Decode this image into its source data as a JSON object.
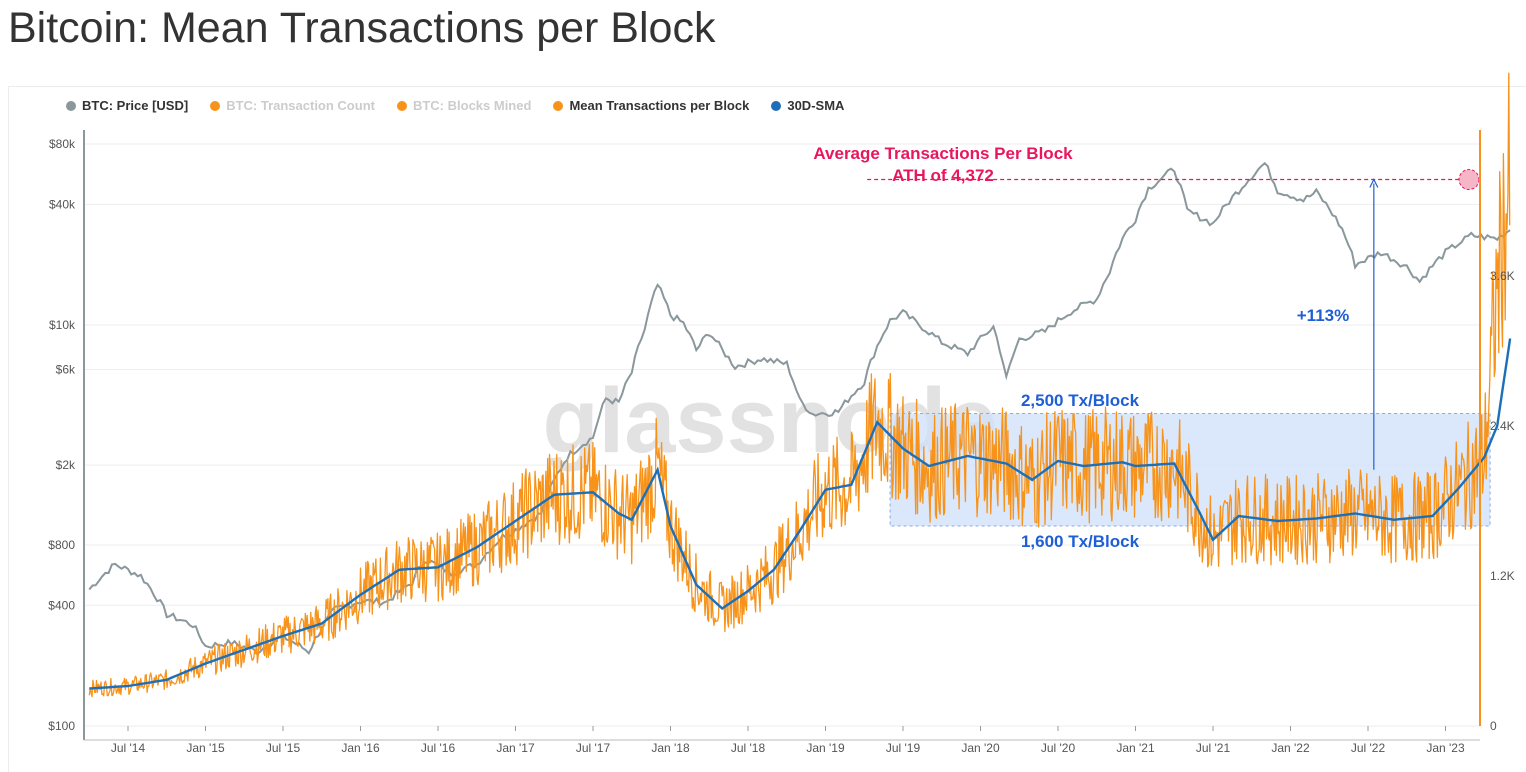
{
  "title": "Bitcoin: Mean Transactions per Block",
  "legend": [
    {
      "label": "BTC: Price [USD]",
      "color": "#8a979c",
      "hidden": false
    },
    {
      "label": "BTC: Transaction Count",
      "color": "#f7931a",
      "hidden": true
    },
    {
      "label": "BTC: Blocks Mined",
      "color": "#f7931a",
      "hidden": true
    },
    {
      "label": "Mean Transactions per Block",
      "color": "#f7931a",
      "hidden": false
    },
    {
      "label": "30D-SMA",
      "color": "#1d6fb8",
      "hidden": false
    }
  ],
  "watermark": "glassnode",
  "annotations": {
    "ath_title": "Average Transactions Per Block",
    "ath_value": "ATH of 4,372",
    "increase": "+113%",
    "upper_band": "2,500 Tx/Block",
    "lower_band": "1,600 Tx/Block"
  },
  "colors": {
    "price": "#8a979c",
    "tx": "#f7931a",
    "sma": "#1d6fb8",
    "ath": "#e8175d",
    "band": "#cfe0fb",
    "band_label": "#1f5fd6"
  },
  "chart_data": {
    "type": "line",
    "x_range": [
      "2014-04",
      "2023-06"
    ],
    "x_ticks": [
      "Jul '14",
      "Jan '15",
      "Jul '15",
      "Jan '16",
      "Jul '16",
      "Jan '17",
      "Jul '17",
      "Jan '18",
      "Jul '18",
      "Jan '19",
      "Jul '19",
      "Jan '20",
      "Jul '20",
      "Jan '21",
      "Jul '21",
      "Jan '22",
      "Jul '22",
      "Jan '23"
    ],
    "y_left": {
      "label": "BTC: Price [USD]",
      "scale": "log",
      "range": [
        100,
        100000
      ],
      "ticks": [
        {
          "value": 80000,
          "label": "$80k"
        },
        {
          "value": 40000,
          "label": "$40k"
        },
        {
          "value": 10000,
          "label": "$10k"
        },
        {
          "value": 6000,
          "label": "$6k"
        },
        {
          "value": 2000,
          "label": "$2k"
        },
        {
          "value": 800,
          "label": "$800"
        },
        {
          "value": 400,
          "label": "$400"
        },
        {
          "value": 100,
          "label": "$100"
        }
      ]
    },
    "y_right": {
      "label": "Mean Transactions per Block",
      "scale": "linear",
      "range": [
        0,
        4800
      ],
      "ticks": [
        {
          "value": 0,
          "label": "0"
        },
        {
          "value": 1200,
          "label": "1.2K"
        },
        {
          "value": 2400,
          "label": "2.4K"
        },
        {
          "value": 3600,
          "label": "3.6K"
        }
      ]
    },
    "band": {
      "low": 1600,
      "high": 2500,
      "start": "2019-06",
      "end": "2023-06"
    },
    "ath_line": {
      "value": 4372,
      "start": "2019-05",
      "end": "2023-06"
    },
    "increase_arrow": {
      "date": "2022-09",
      "from": 2050,
      "to": 4372
    },
    "series": [
      {
        "name": "BTC: Price [USD]",
        "axis": "left",
        "color": "#8a979c",
        "points": [
          [
            "2014-04",
            480
          ],
          [
            "2014-06",
            640
          ],
          [
            "2014-08",
            560
          ],
          [
            "2014-10",
            360
          ],
          [
            "2014-12",
            320
          ],
          [
            "2015-01",
            250
          ],
          [
            "2015-03",
            260
          ],
          [
            "2015-05",
            235
          ],
          [
            "2015-07",
            280
          ],
          [
            "2015-09",
            235
          ],
          [
            "2015-11",
            380
          ],
          [
            "2016-01",
            420
          ],
          [
            "2016-03",
            415
          ],
          [
            "2016-05",
            520
          ],
          [
            "2016-06",
            680
          ],
          [
            "2016-08",
            580
          ],
          [
            "2016-10",
            640
          ],
          [
            "2016-12",
            880
          ],
          [
            "2017-01",
            950
          ],
          [
            "2017-03",
            1150
          ],
          [
            "2017-05",
            2200
          ],
          [
            "2017-06",
            2500
          ],
          [
            "2017-07",
            2750
          ],
          [
            "2017-08",
            4300
          ],
          [
            "2017-09",
            4100
          ],
          [
            "2017-10",
            5800
          ],
          [
            "2017-11",
            9500
          ],
          [
            "2017-12",
            15800
          ],
          [
            "2018-01",
            11200
          ],
          [
            "2018-02",
            10200
          ],
          [
            "2018-03",
            7500
          ],
          [
            "2018-04",
            9200
          ],
          [
            "2018-05",
            7500
          ],
          [
            "2018-06",
            6200
          ],
          [
            "2018-08",
            6800
          ],
          [
            "2018-10",
            6400
          ],
          [
            "2018-11",
            4200
          ],
          [
            "2018-12",
            3600
          ],
          [
            "2019-02",
            3700
          ],
          [
            "2019-04",
            5200
          ],
          [
            "2019-06",
            10500
          ],
          [
            "2019-07",
            11500
          ],
          [
            "2019-08",
            10300
          ],
          [
            "2019-10",
            8200
          ],
          [
            "2019-12",
            7200
          ],
          [
            "2020-02",
            9800
          ],
          [
            "2020-03",
            5400
          ],
          [
            "2020-04",
            8500
          ],
          [
            "2020-06",
            9300
          ],
          [
            "2020-08",
            11700
          ],
          [
            "2020-10",
            13500
          ],
          [
            "2020-11",
            18500
          ],
          [
            "2020-12",
            27000
          ],
          [
            "2021-01",
            34000
          ],
          [
            "2021-02",
            48000
          ],
          [
            "2021-04",
            60000
          ],
          [
            "2021-05",
            37000
          ],
          [
            "2021-07",
            32000
          ],
          [
            "2021-09",
            47000
          ],
          [
            "2021-11",
            64000
          ],
          [
            "2021-12",
            47000
          ],
          [
            "2022-02",
            42000
          ],
          [
            "2022-03",
            46000
          ],
          [
            "2022-05",
            30000
          ],
          [
            "2022-06",
            20000
          ],
          [
            "2022-08",
            23000
          ],
          [
            "2022-10",
            19500
          ],
          [
            "2022-11",
            16500
          ],
          [
            "2023-01",
            23000
          ],
          [
            "2023-03",
            28000
          ],
          [
            "2023-05",
            27000
          ],
          [
            "2023-06",
            30000
          ]
        ]
      },
      {
        "name": "30D-SMA",
        "axis": "right",
        "color": "#1d6fb8",
        "points": [
          [
            "2014-04",
            300
          ],
          [
            "2014-07",
            320
          ],
          [
            "2014-10",
            370
          ],
          [
            "2015-01",
            500
          ],
          [
            "2015-04",
            610
          ],
          [
            "2015-07",
            720
          ],
          [
            "2015-10",
            820
          ],
          [
            "2016-01",
            1050
          ],
          [
            "2016-04",
            1250
          ],
          [
            "2016-07",
            1270
          ],
          [
            "2016-10",
            1430
          ],
          [
            "2017-01",
            1640
          ],
          [
            "2017-04",
            1850
          ],
          [
            "2017-07",
            1870
          ],
          [
            "2017-09",
            1700
          ],
          [
            "2017-10",
            1650
          ],
          [
            "2017-12",
            2050
          ],
          [
            "2018-01",
            1600
          ],
          [
            "2018-03",
            1130
          ],
          [
            "2018-05",
            940
          ],
          [
            "2018-07",
            1080
          ],
          [
            "2018-09",
            1250
          ],
          [
            "2018-11",
            1560
          ],
          [
            "2019-01",
            1890
          ],
          [
            "2019-03",
            1930
          ],
          [
            "2019-05",
            2430
          ],
          [
            "2019-07",
            2220
          ],
          [
            "2019-09",
            2080
          ],
          [
            "2019-12",
            2160
          ],
          [
            "2020-03",
            2100
          ],
          [
            "2020-05",
            1970
          ],
          [
            "2020-07",
            2120
          ],
          [
            "2020-09",
            2080
          ],
          [
            "2020-12",
            2110
          ],
          [
            "2021-01",
            2080
          ],
          [
            "2021-04",
            2100
          ],
          [
            "2021-06",
            1700
          ],
          [
            "2021-07",
            1490
          ],
          [
            "2021-09",
            1680
          ],
          [
            "2021-12",
            1640
          ],
          [
            "2022-03",
            1660
          ],
          [
            "2022-06",
            1700
          ],
          [
            "2022-09",
            1650
          ],
          [
            "2022-12",
            1680
          ],
          [
            "2023-02",
            1900
          ],
          [
            "2023-04",
            2150
          ],
          [
            "2023-05",
            2400
          ],
          [
            "2023-06",
            3100
          ]
        ]
      },
      {
        "name": "Mean Transactions per Block",
        "axis": "right",
        "color": "#f7931a",
        "points": [
          [
            "2014-04",
            300
          ],
          [
            "2014-07",
            320
          ],
          [
            "2014-10",
            370
          ],
          [
            "2015-01",
            500
          ],
          [
            "2015-04",
            610
          ],
          [
            "2015-07",
            720
          ],
          [
            "2015-10",
            820
          ],
          [
            "2016-01",
            1050
          ],
          [
            "2016-04",
            1250
          ],
          [
            "2016-07",
            1270
          ],
          [
            "2016-10",
            1430
          ],
          [
            "2017-01",
            1640
          ],
          [
            "2017-04",
            1850
          ],
          [
            "2017-07",
            1870
          ],
          [
            "2017-09",
            1700
          ],
          [
            "2017-10",
            1650
          ],
          [
            "2017-12",
            2050
          ],
          [
            "2018-01",
            1600
          ],
          [
            "2018-03",
            1130
          ],
          [
            "2018-05",
            940
          ],
          [
            "2018-07",
            1080
          ],
          [
            "2018-09",
            1250
          ],
          [
            "2018-11",
            1560
          ],
          [
            "2019-01",
            1890
          ],
          [
            "2019-03",
            1930
          ],
          [
            "2019-05",
            2430
          ],
          [
            "2019-07",
            2220
          ],
          [
            "2019-09",
            2080
          ],
          [
            "2019-12",
            2160
          ],
          [
            "2020-03",
            2100
          ],
          [
            "2020-05",
            1970
          ],
          [
            "2020-07",
            2120
          ],
          [
            "2020-09",
            2080
          ],
          [
            "2020-12",
            2110
          ],
          [
            "2021-01",
            2080
          ],
          [
            "2021-04",
            2100
          ],
          [
            "2021-06",
            1700
          ],
          [
            "2021-07",
            1490
          ],
          [
            "2021-09",
            1680
          ],
          [
            "2021-12",
            1640
          ],
          [
            "2022-03",
            1660
          ],
          [
            "2022-06",
            1700
          ],
          [
            "2022-09",
            1650
          ],
          [
            "2022-12",
            1680
          ],
          [
            "2023-02",
            1900
          ],
          [
            "2023-04",
            2150
          ],
          [
            "2023-05",
            3500
          ],
          [
            "2023-06",
            4372
          ]
        ]
      }
    ]
  }
}
